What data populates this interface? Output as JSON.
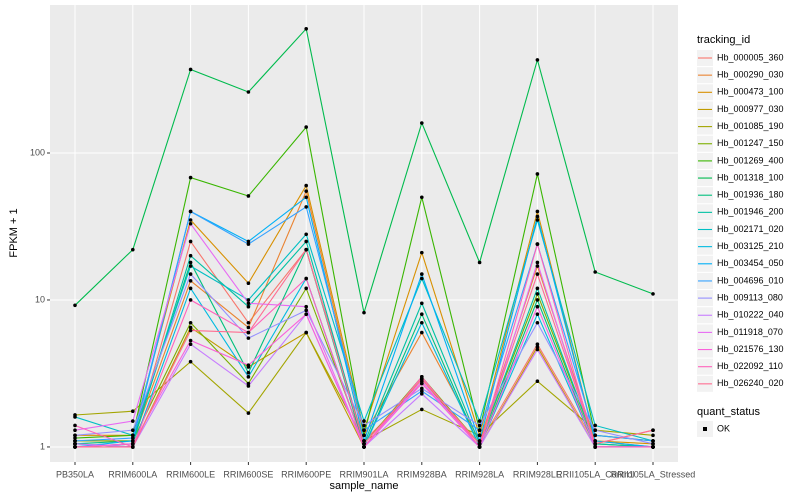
{
  "chart_data": {
    "type": "line",
    "xlabel": "sample_name",
    "ylabel": "FPKM + 1",
    "categories": [
      "PB350LA",
      "RRIM600LA",
      "RRIM600LE",
      "RRIM600SE",
      "RRIM600PE",
      "RRIM901LA",
      "RRIM928BA",
      "RRIM928LA",
      "RRIM928LE",
      "RRII105LA_Control",
      "RRII105LA_Stressed"
    ],
    "log_scale": true,
    "ylim": [
      0.79,
      1016
    ],
    "yticks": [
      1,
      10,
      100
    ],
    "grid": true,
    "legend_title": "tracking_id",
    "legend_position": "right",
    "point_legend": {
      "title": "quant_status",
      "labels": [
        "OK"
      ],
      "color": "#000000"
    },
    "series": [
      {
        "name": "Hb_000005_360",
        "color": "#F8766D",
        "values": [
          1.0,
          1.05,
          25,
          7,
          22,
          1.1,
          2.7,
          1.05,
          5,
          1.05,
          1.3
        ]
      },
      {
        "name": "Hb_000290_030",
        "color": "#EA8331",
        "values": [
          1.1,
          1.1,
          13.5,
          6.5,
          55,
          1.2,
          6,
          1.1,
          17,
          1.1,
          1.0
        ]
      },
      {
        "name": "Hb_000473_100",
        "color": "#D89000",
        "values": [
          1.2,
          1.2,
          35,
          13,
          60,
          1.3,
          21,
          1.2,
          40,
          1.1,
          1.05
        ]
      },
      {
        "name": "Hb_000977_030",
        "color": "#C09B00",
        "values": [
          1.05,
          1.0,
          6.5,
          3.5,
          6,
          1.0,
          2.9,
          1.0,
          4.8,
          1.0,
          1.0
        ]
      },
      {
        "name": "Hb_001085_190",
        "color": "#A3A500",
        "values": [
          1.65,
          1.75,
          3.8,
          1.7,
          6,
          1.1,
          1.8,
          1.2,
          2.8,
          1.3,
          1.2
        ]
      },
      {
        "name": "Hb_001247_150",
        "color": "#7CAE00",
        "values": [
          1.1,
          1.1,
          7,
          2.7,
          12,
          1.05,
          3,
          1.05,
          11,
          1.05,
          1.0
        ]
      },
      {
        "name": "Hb_001269_400",
        "color": "#39B600",
        "values": [
          1.15,
          1.2,
          68,
          51,
          150,
          1.2,
          50,
          1.3,
          72,
          1.2,
          1.1
        ]
      },
      {
        "name": "Hb_001318_100",
        "color": "#00BB4E",
        "values": [
          9.2,
          22,
          370,
          260,
          700,
          8.2,
          160,
          18,
          430,
          15.5,
          11
        ]
      },
      {
        "name": "Hb_001936_180",
        "color": "#00BF7D",
        "values": [
          1.05,
          1.1,
          18,
          3.2,
          22,
          1.0,
          8,
          1.0,
          10,
          1.0,
          1.0
        ]
      },
      {
        "name": "Hb_001946_200",
        "color": "#00C1A3",
        "values": [
          1.0,
          1.05,
          20,
          9,
          25,
          1.05,
          9.5,
          1.05,
          12,
          1.05,
          1.0
        ]
      },
      {
        "name": "Hb_002171_020",
        "color": "#00BFC4",
        "values": [
          1.6,
          1.2,
          17,
          10,
          28,
          1.5,
          14,
          1.5,
          35,
          1.4,
          1.1
        ]
      },
      {
        "name": "Hb_003125_210",
        "color": "#00BAE0",
        "values": [
          1.05,
          1.0,
          12,
          3.0,
          14,
          1.0,
          7,
          1.0,
          8,
          1.0,
          1.0
        ]
      },
      {
        "name": "Hb_003454_050",
        "color": "#00B0F6",
        "values": [
          1.0,
          1.1,
          40,
          25,
          50,
          1.1,
          15,
          1.1,
          37,
          1.1,
          1.0
        ]
      },
      {
        "name": "Hb_004696_010",
        "color": "#35A2FF",
        "values": [
          1.1,
          1.15,
          40,
          24,
          43,
          1.3,
          2.4,
          1.3,
          24,
          1.2,
          1.1
        ]
      },
      {
        "name": "Hb_009113_080",
        "color": "#9590FF",
        "values": [
          1.2,
          1.3,
          15,
          5.5,
          8.5,
          1.4,
          2.5,
          1.4,
          7,
          1.3,
          1.05
        ]
      },
      {
        "name": "Hb_010222_040",
        "color": "#C77CFF",
        "values": [
          1.05,
          1.0,
          5,
          2.6,
          8,
          1.0,
          2.3,
          1.0,
          4.6,
          1.0,
          1.0
        ]
      },
      {
        "name": "Hb_011918_070",
        "color": "#E76BF3",
        "values": [
          1.3,
          1.5,
          33,
          9.5,
          9,
          1.0,
          2.8,
          1.0,
          18,
          1.0,
          1.0
        ]
      },
      {
        "name": "Hb_021576_130",
        "color": "#FA62DB",
        "values": [
          1.0,
          1.05,
          5.3,
          3.6,
          8,
          1.0,
          2.7,
          1.0,
          9,
          1.0,
          1.0
        ]
      },
      {
        "name": "Hb_022092_110",
        "color": "#FF62BC",
        "values": [
          1.4,
          1.0,
          10,
          6,
          14,
          1.0,
          3.0,
          1.0,
          24,
          1.0,
          1.0
        ]
      },
      {
        "name": "Hb_026240_020",
        "color": "#FF6C91",
        "values": [
          1.0,
          1.0,
          6.2,
          6,
          22,
          1.05,
          2.9,
          1.05,
          15,
          1.05,
          1.3
        ]
      }
    ]
  }
}
